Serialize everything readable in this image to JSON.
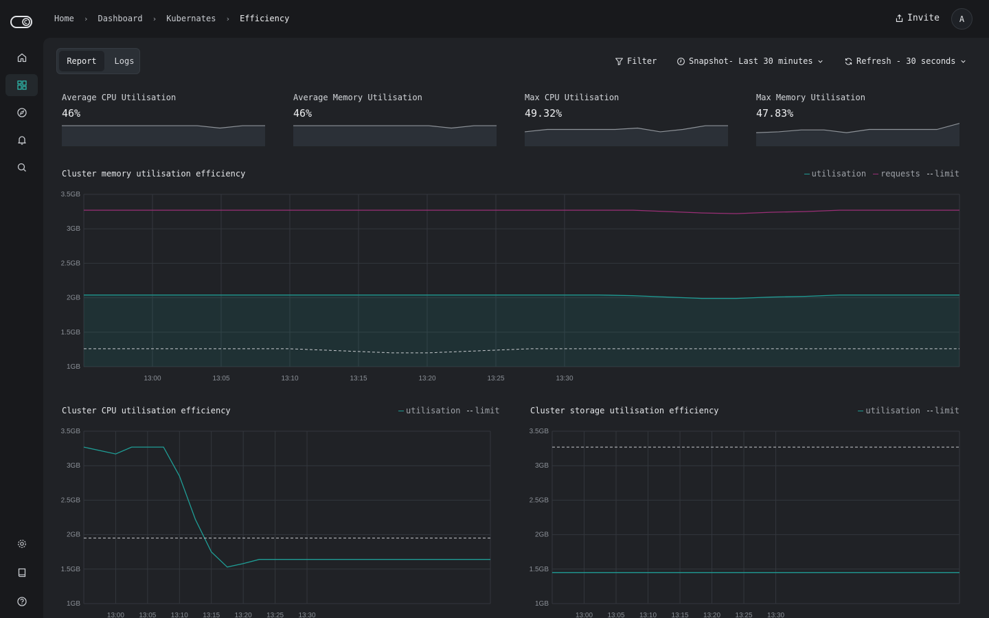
{
  "breadcrumb": [
    "Home",
    "Dashboard",
    "Kubernates",
    "Efficiency"
  ],
  "header": {
    "invite_label": "Invite",
    "avatar_initial": "A"
  },
  "sidebar": {
    "top_items": [
      {
        "name": "home",
        "icon": "home-icon",
        "active": false
      },
      {
        "name": "dashboard",
        "icon": "grid-icon",
        "active": true
      },
      {
        "name": "explore",
        "icon": "compass-icon",
        "active": false
      },
      {
        "name": "alerts",
        "icon": "bell-icon",
        "active": false
      },
      {
        "name": "search",
        "icon": "search-icon",
        "active": false
      }
    ],
    "bottom_items": [
      {
        "name": "settings",
        "icon": "gear-icon"
      },
      {
        "name": "docs",
        "icon": "book-icon"
      },
      {
        "name": "help",
        "icon": "help-icon"
      }
    ]
  },
  "tabs": {
    "report": "Report",
    "logs": "Logs"
  },
  "toolbar": {
    "filter_label": "Filter",
    "snapshot_label": "Snapshot- Last 30 minutes",
    "refresh_label": "Refresh - 30 seconds"
  },
  "colors": {
    "utilisation": "#1f9e96",
    "requests": "#9b2f77",
    "limit": "#c9ccd0",
    "grid": "#33373d"
  },
  "kpis": [
    {
      "label": "Average CPU Utilisation",
      "value": "46%",
      "spark": [
        0.12,
        0.12,
        0.12,
        0.12,
        0.12,
        0.12,
        0.12,
        0.22,
        0.12,
        0.12
      ]
    },
    {
      "label": "Average Memory Utilisation",
      "value": "46%",
      "spark": [
        0.12,
        0.12,
        0.12,
        0.12,
        0.12,
        0.12,
        0.12,
        0.22,
        0.12,
        0.12
      ]
    },
    {
      "label": "Max CPU Utilisation",
      "value": "49.32%",
      "spark": [
        0.38,
        0.28,
        0.28,
        0.28,
        0.28,
        0.22,
        0.38,
        0.28,
        0.12,
        0.12
      ]
    },
    {
      "label": "Max Memory Utilisation",
      "value": "47.83%",
      "spark": [
        0.42,
        0.38,
        0.3,
        0.3,
        0.42,
        0.28,
        0.28,
        0.28,
        0.28,
        0.02
      ]
    }
  ],
  "chart_data": [
    {
      "type": "area",
      "title": "Cluster memory utilisation efficiency",
      "legend": "top-right",
      "grid": true,
      "ylim": [
        1,
        3.5
      ],
      "yticks": [
        "1GB",
        "1.5GB",
        "2GB",
        "2.5GB",
        "3GB",
        "3.5GB"
      ],
      "xticks": [
        "13:00",
        "13:05",
        "13:10",
        "13:15",
        "13:20",
        "13:25",
        "13:30"
      ],
      "x": [
        12.5,
        15,
        17.5,
        20,
        22.5,
        25,
        27.5,
        30,
        32.5,
        35,
        37.5,
        40,
        42.5,
        45,
        47.5,
        50,
        52.5,
        55,
        57.5,
        60,
        62.5,
        65,
        67.5,
        70
      ],
      "series": [
        {
          "name": "utilisation",
          "style": "solid",
          "fill": true,
          "values": [
            2.04,
            2.04,
            2.04,
            2.04,
            2.04,
            2.04,
            2.04,
            2.04,
            2.04,
            2.04,
            2.04,
            2.04,
            2.04,
            2.04,
            2.04,
            2.03,
            2.01,
            1.99,
            1.99,
            2.01,
            2.02,
            2.04,
            2.04,
            2.04
          ]
        },
        {
          "name": "requests",
          "style": "solid",
          "values": [
            3.27,
            3.27,
            3.27,
            3.27,
            3.27,
            3.27,
            3.27,
            3.27,
            3.27,
            3.27,
            3.27,
            3.27,
            3.27,
            3.27,
            3.27,
            3.27,
            3.25,
            3.23,
            3.22,
            3.24,
            3.25,
            3.27,
            3.27,
            3.27
          ]
        },
        {
          "name": "limit",
          "style": "dashed",
          "values": [
            1.26,
            1.26,
            1.26,
            1.26,
            1.26,
            1.26,
            1.24,
            1.22,
            1.2,
            1.2,
            1.22,
            1.24,
            1.26,
            1.26,
            1.26,
            1.26,
            1.26,
            1.26,
            1.26,
            1.26,
            1.26,
            1.26,
            1.26,
            1.26
          ]
        }
      ]
    },
    {
      "type": "line",
      "title": "Cluster CPU utilisation efficiency",
      "legend": "top-right",
      "grid": true,
      "ylim": [
        1,
        3.5
      ],
      "yticks": [
        "1GB",
        "1.5GB",
        "2GB",
        "2.5GB",
        "3GB",
        "3.5GB"
      ],
      "xticks": [
        "13:00",
        "13:05",
        "13:10",
        "13:15",
        "13:20",
        "13:25",
        "13:30"
      ],
      "x": [
        12.5,
        15,
        17.5,
        20,
        22.5,
        25,
        27.5,
        30,
        32.5,
        35,
        37.5,
        40
      ],
      "series": [
        {
          "name": "utilisation",
          "style": "solid",
          "values": [
            3.27,
            3.17,
            3.27,
            3.27,
            3.27,
            2.85,
            2.22,
            1.75,
            1.53,
            1.58,
            1.64,
            1.64
          ]
        },
        {
          "name": "limit",
          "style": "dashed",
          "values": [
            1.95,
            1.95,
            1.95,
            1.95,
            1.95,
            1.95,
            1.95,
            1.95,
            1.95,
            1.95,
            1.95,
            1.95
          ]
        }
      ]
    },
    {
      "type": "line",
      "title": "Cluster storage utilisation efficiency",
      "legend": "top-right",
      "grid": true,
      "ylim": [
        1,
        3.5
      ],
      "yticks": [
        "1GB",
        "1.5GB",
        "2GB",
        "2.5GB",
        "3GB",
        "3.5GB"
      ],
      "xticks": [
        "13:00",
        "13:05",
        "13:10",
        "13:15",
        "13:20",
        "13:25",
        "13:30"
      ],
      "x": [
        12.5,
        35,
        35.2
      ],
      "series": [
        {
          "name": "utilisation",
          "style": "solid",
          "values": [
            1.45,
            1.45,
            1.45
          ]
        },
        {
          "name": "limit",
          "style": "dashed",
          "values": [
            3.27,
            3.27,
            3.27
          ]
        }
      ]
    }
  ]
}
